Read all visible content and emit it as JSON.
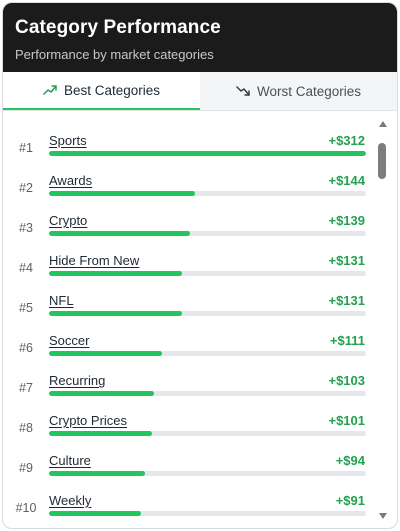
{
  "header": {
    "title": "Category Performance",
    "subtitle": "Performance by market categories"
  },
  "tabs": [
    {
      "label": "Best Categories",
      "icon": "trending-up-icon",
      "active": true
    },
    {
      "label": "Worst Categories",
      "icon": "trending-down-icon",
      "active": false
    }
  ],
  "colors": {
    "accent": "#22c55e",
    "value_text": "#22a14f",
    "track": "#e5e7eb",
    "header_bg": "#1b1b1b"
  },
  "categories": [
    {
      "rank": "#1",
      "name": "Sports",
      "value": "+$312",
      "amount": 312
    },
    {
      "rank": "#2",
      "name": "Awards",
      "value": "+$144",
      "amount": 144
    },
    {
      "rank": "#3",
      "name": "Crypto",
      "value": "+$139",
      "amount": 139
    },
    {
      "rank": "#4",
      "name": "Hide From New",
      "value": "+$131",
      "amount": 131
    },
    {
      "rank": "#5",
      "name": "NFL",
      "value": "+$131",
      "amount": 131
    },
    {
      "rank": "#6",
      "name": "Soccer",
      "value": "+$111",
      "amount": 111
    },
    {
      "rank": "#7",
      "name": "Recurring",
      "value": "+$103",
      "amount": 103
    },
    {
      "rank": "#8",
      "name": "Crypto Prices",
      "value": "+$101",
      "amount": 101
    },
    {
      "rank": "#9",
      "name": "Culture",
      "value": "+$94",
      "amount": 94
    },
    {
      "rank": "#10",
      "name": "Weekly",
      "value": "+$91",
      "amount": 91
    }
  ]
}
